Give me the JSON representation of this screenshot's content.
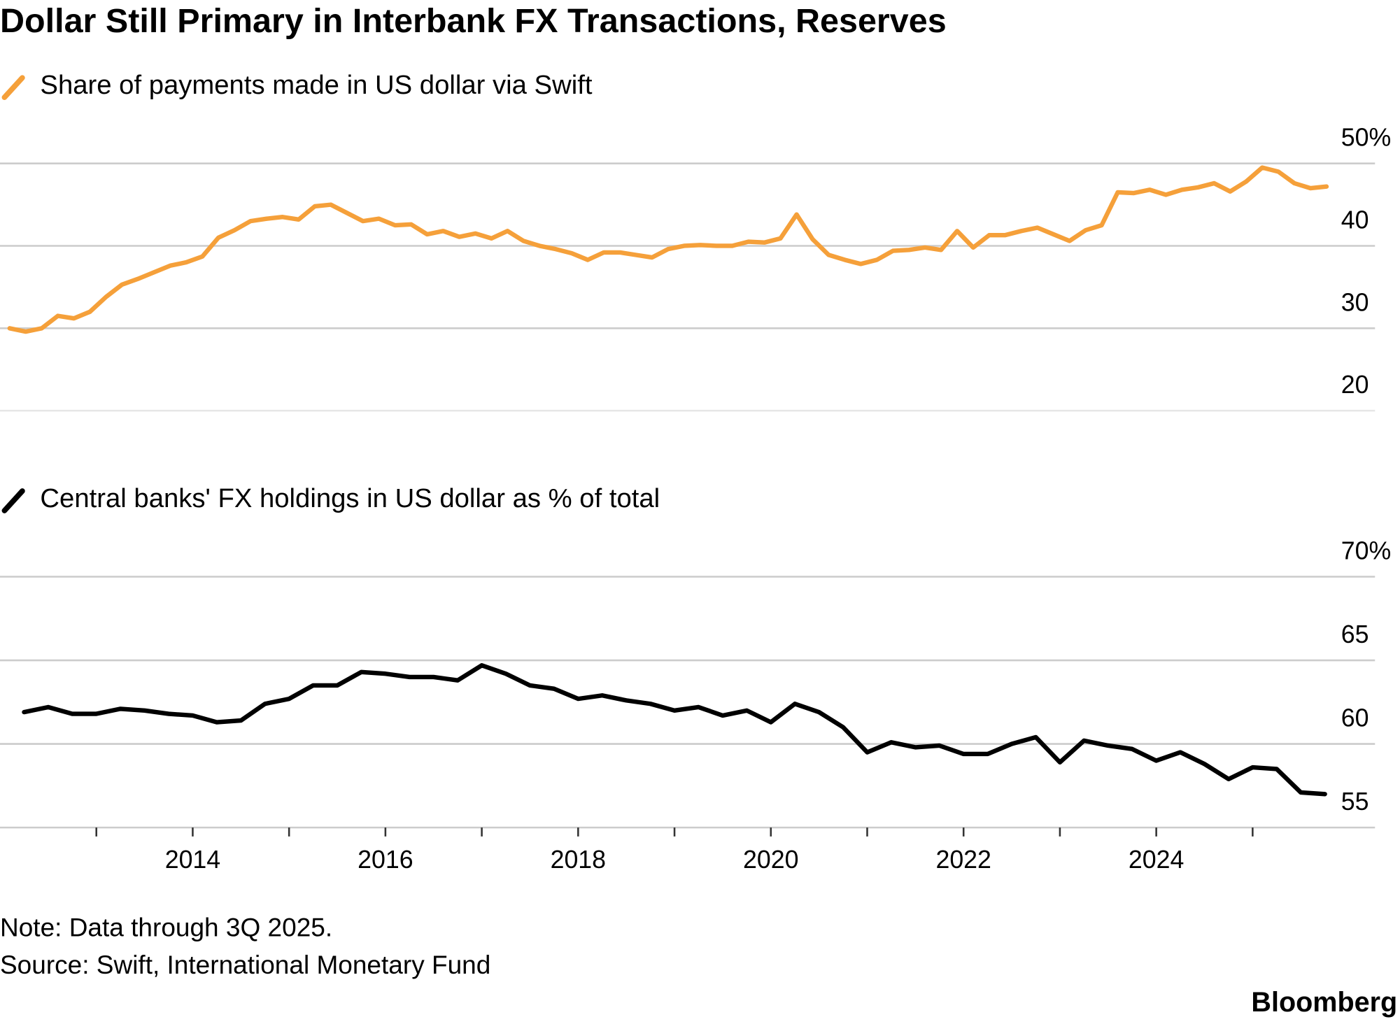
{
  "title": "Dollar Still Primary in Interbank FX Transactions, Reserves",
  "note": "Note: Data through 3Q 2025.",
  "source": "Source: Swift, International Monetary Fund",
  "logo": "Bloomberg",
  "chart_data": [
    {
      "type": "line",
      "x": [
        2012.1,
        2012.267,
        2012.433,
        2012.6,
        2012.767,
        2012.933,
        2013.1,
        2013.267,
        2013.433,
        2013.6,
        2013.767,
        2013.933,
        2014.1,
        2014.267,
        2014.433,
        2014.6,
        2014.767,
        2014.933,
        2015.1,
        2015.267,
        2015.433,
        2015.6,
        2015.767,
        2015.933,
        2016.1,
        2016.267,
        2016.433,
        2016.6,
        2016.767,
        2016.933,
        2017.1,
        2017.267,
        2017.433,
        2017.6,
        2017.767,
        2017.933,
        2018.1,
        2018.267,
        2018.433,
        2018.6,
        2018.767,
        2018.933,
        2019.1,
        2019.267,
        2019.433,
        2019.6,
        2019.767,
        2019.933,
        2020.1,
        2020.267,
        2020.433,
        2020.6,
        2020.767,
        2020.933,
        2021.1,
        2021.267,
        2021.433,
        2021.6,
        2021.767,
        2021.933,
        2022.1,
        2022.267,
        2022.433,
        2022.6,
        2022.767,
        2022.933,
        2023.1,
        2023.267,
        2023.433,
        2023.6,
        2023.767,
        2023.933,
        2024.1,
        2024.267,
        2024.433,
        2024.6,
        2024.767,
        2024.933,
        2025.1,
        2025.267,
        2025.433,
        2025.6,
        2025.767
      ],
      "series": [
        {
          "name": "Share of payments made in US dollar via Swift",
          "color": "#f5a03a",
          "values": [
            30.0,
            29.6,
            30.0,
            31.5,
            31.2,
            32.0,
            33.8,
            35.3,
            36.0,
            36.8,
            37.6,
            38.0,
            38.7,
            41.0,
            41.9,
            43.0,
            43.3,
            43.5,
            43.2,
            44.8,
            45.0,
            44.0,
            43.0,
            43.3,
            42.5,
            42.6,
            41.4,
            41.8,
            41.1,
            41.5,
            40.9,
            41.8,
            40.6,
            40.0,
            39.6,
            39.1,
            38.3,
            39.2,
            39.2,
            38.9,
            38.6,
            39.6,
            40.0,
            40.1,
            40.0,
            40.0,
            40.5,
            40.4,
            40.9,
            43.8,
            40.8,
            38.9,
            38.3,
            37.8,
            38.3,
            39.4,
            39.5,
            39.8,
            39.5,
            41.8,
            39.8,
            41.3,
            41.3,
            41.8,
            42.2,
            41.4,
            40.6,
            41.9,
            42.5,
            46.5,
            46.4,
            46.8,
            46.2,
            46.8,
            47.1,
            47.6,
            46.6,
            47.8,
            49.5,
            49.0,
            47.6,
            47.0,
            47.2
          ]
        }
      ],
      "xlim": [
        2012,
        2026.27
      ],
      "ylim": [
        20,
        50
      ],
      "yticks": [
        20,
        30,
        40,
        {
          "value": 50,
          "label": "50%"
        }
      ],
      "grid": true
    },
    {
      "type": "line",
      "x": [
        2012.25,
        2012.5,
        2012.75,
        2013,
        2013.25,
        2013.5,
        2013.75,
        2014,
        2014.25,
        2014.5,
        2014.75,
        2015,
        2015.25,
        2015.5,
        2015.75,
        2016,
        2016.25,
        2016.5,
        2016.75,
        2017,
        2017.25,
        2017.5,
        2017.75,
        2018,
        2018.25,
        2018.5,
        2018.75,
        2019,
        2019.25,
        2019.5,
        2019.75,
        2020,
        2020.25,
        2020.5,
        2020.75,
        2021,
        2021.25,
        2021.5,
        2021.75,
        2022,
        2022.25,
        2022.5,
        2022.75,
        2023,
        2023.25,
        2023.5,
        2023.75,
        2024,
        2024.25,
        2024.5,
        2024.75,
        2025,
        2025.25,
        2025.5,
        2025.75
      ],
      "series": [
        {
          "name": "Central banks' FX holdings in US dollar as % of total",
          "color": "#000000",
          "values": [
            61.9,
            62.2,
            61.8,
            61.8,
            62.1,
            62.0,
            61.8,
            61.7,
            61.3,
            61.4,
            62.4,
            62.7,
            63.5,
            63.5,
            64.3,
            64.2,
            64.0,
            64.0,
            63.8,
            64.7,
            64.2,
            63.5,
            63.3,
            62.7,
            62.9,
            62.6,
            62.4,
            62.0,
            62.2,
            61.7,
            62.0,
            61.3,
            62.4,
            61.9,
            61.0,
            59.5,
            60.1,
            59.8,
            59.9,
            59.4,
            59.4,
            60.0,
            60.4,
            58.9,
            60.2,
            59.9,
            59.7,
            59.0,
            59.5,
            58.8,
            57.9,
            58.6,
            58.5,
            57.1,
            57.0
          ]
        }
      ],
      "xlim": [
        2012,
        2026.27
      ],
      "ylim": [
        55,
        70
      ],
      "yticks": [
        55,
        60,
        65,
        {
          "value": 70,
          "label": "70%"
        }
      ],
      "xticks": [
        2014,
        2016,
        2018,
        2020,
        2022,
        2024
      ],
      "xminor_ticks": [
        2013,
        2015,
        2017,
        2019,
        2021,
        2023,
        2025
      ],
      "grid": true
    }
  ]
}
